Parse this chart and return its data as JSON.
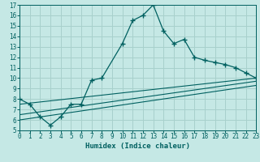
{
  "xlabel": "Humidex (Indice chaleur)",
  "bg_color": "#c5e8e5",
  "line_color": "#006060",
  "grid_color": "#a8d0cc",
  "xlim": [
    0,
    23
  ],
  "ylim": [
    5,
    17
  ],
  "xticks": [
    0,
    1,
    2,
    3,
    4,
    5,
    6,
    7,
    8,
    9,
    10,
    11,
    12,
    13,
    14,
    15,
    16,
    17,
    18,
    19,
    20,
    21,
    22,
    23
  ],
  "yticks": [
    5,
    6,
    7,
    8,
    9,
    10,
    11,
    12,
    13,
    14,
    15,
    16,
    17
  ],
  "line1_x": [
    0,
    1,
    2,
    3,
    4,
    5,
    6,
    7,
    8,
    10,
    11,
    12,
    13,
    14,
    15,
    16,
    17,
    18,
    19,
    20,
    21,
    22,
    23
  ],
  "line1_y": [
    8.0,
    7.5,
    6.3,
    5.5,
    6.3,
    7.5,
    7.5,
    9.8,
    10.0,
    13.3,
    15.5,
    16.0,
    17.0,
    14.5,
    13.3,
    13.7,
    12.0,
    11.7,
    11.5,
    11.3,
    11.0,
    10.5,
    10.0
  ],
  "line2_x": [
    0,
    23
  ],
  "line2_y": [
    7.5,
    10.0
  ],
  "line3_x": [
    0,
    23
  ],
  "line3_y": [
    6.5,
    9.7
  ],
  "line4_x": [
    0,
    23
  ],
  "line4_y": [
    6.0,
    9.3
  ],
  "tick_fontsize": 5.5,
  "xlabel_fontsize": 6.5
}
